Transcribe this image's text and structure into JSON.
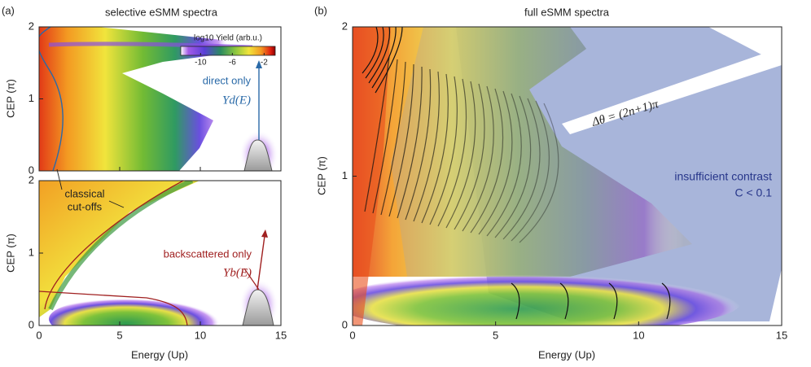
{
  "chart_data": [
    {
      "type": "heatmap",
      "panel_label": "(a)",
      "title": "selective eSMM spectra",
      "ylabel": "CEP (π)",
      "xlim": [
        0,
        15
      ],
      "xticks": [
        0,
        5,
        10,
        15
      ],
      "ylim": [
        0,
        2
      ],
      "yticks": [
        0,
        1,
        2
      ],
      "colorbar": {
        "label": "log10 Yield (arb.u.)",
        "clim": [
          -12.5,
          -0.6
        ],
        "ticks": [
          -10,
          -6,
          -2
        ]
      },
      "annotations": [
        "direct only",
        "Yd(E)",
        "classical",
        "cut-offs"
      ]
    },
    {
      "type": "heatmap",
      "xlabel": "Energy (Up)",
      "ylabel": "CEP (π)",
      "xlim": [
        0,
        15
      ],
      "xticks": [
        0,
        5,
        10,
        15
      ],
      "ylim": [
        0,
        2
      ],
      "yticks": [
        0,
        1,
        2
      ],
      "annotations": [
        "backscattered only",
        "Yb(E)"
      ]
    },
    {
      "type": "heatmap",
      "panel_label": "(b)",
      "title": "full eSMM spectra",
      "xlabel": "Energy (Up)",
      "ylabel": "CEP (π)",
      "xlim": [
        0,
        15
      ],
      "xticks": [
        0,
        5,
        10,
        15
      ],
      "ylim": [
        0,
        2
      ],
      "yticks": [
        0,
        1,
        2
      ],
      "annotations": [
        "Δθ = (2n+1)π",
        "insufficient contrast",
        "C < 0.1"
      ]
    }
  ]
}
